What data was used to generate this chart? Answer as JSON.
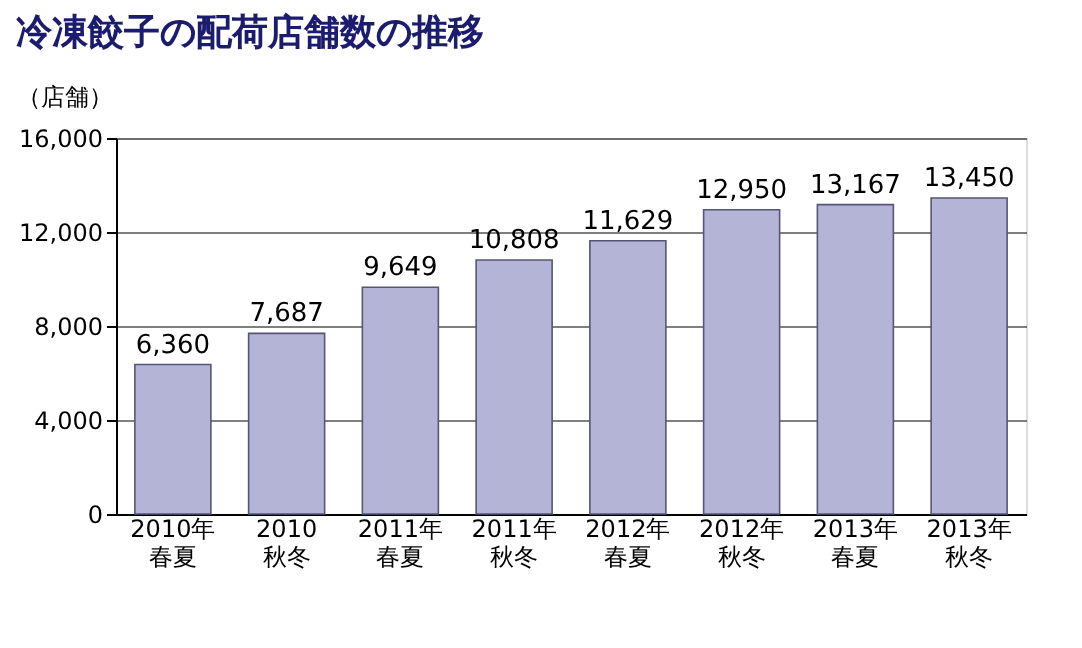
{
  "chart_data": {
    "type": "bar",
    "title": "冷凍餃子の配荷店舗数の推移",
    "ylabel": "（店舗）",
    "categories": [
      "2010年春夏",
      "2010秋冬",
      "2011年春夏",
      "2011年秋冬",
      "2012年春夏",
      "2012年秋冬",
      "2013年春夏",
      "2013年秋冬"
    ],
    "values": [
      6360,
      7687,
      9649,
      10808,
      11629,
      12950,
      13167,
      13450
    ],
    "value_labels": [
      "6,360",
      "7,687",
      "9,649",
      "10,808",
      "11,629",
      "12,950",
      "13,167",
      "13,450"
    ],
    "color": "#b4b4d6",
    "ylim": [
      0,
      16000
    ],
    "yticks": [
      0,
      {
        "value": 4000,
        "label": "4,000"
      },
      {
        "value": 8000,
        "label": "8,000"
      },
      {
        "value": 12000,
        "label": "12,000"
      },
      {
        "value": 16000,
        "label": "16,000"
      }
    ],
    "grid": "y"
  }
}
